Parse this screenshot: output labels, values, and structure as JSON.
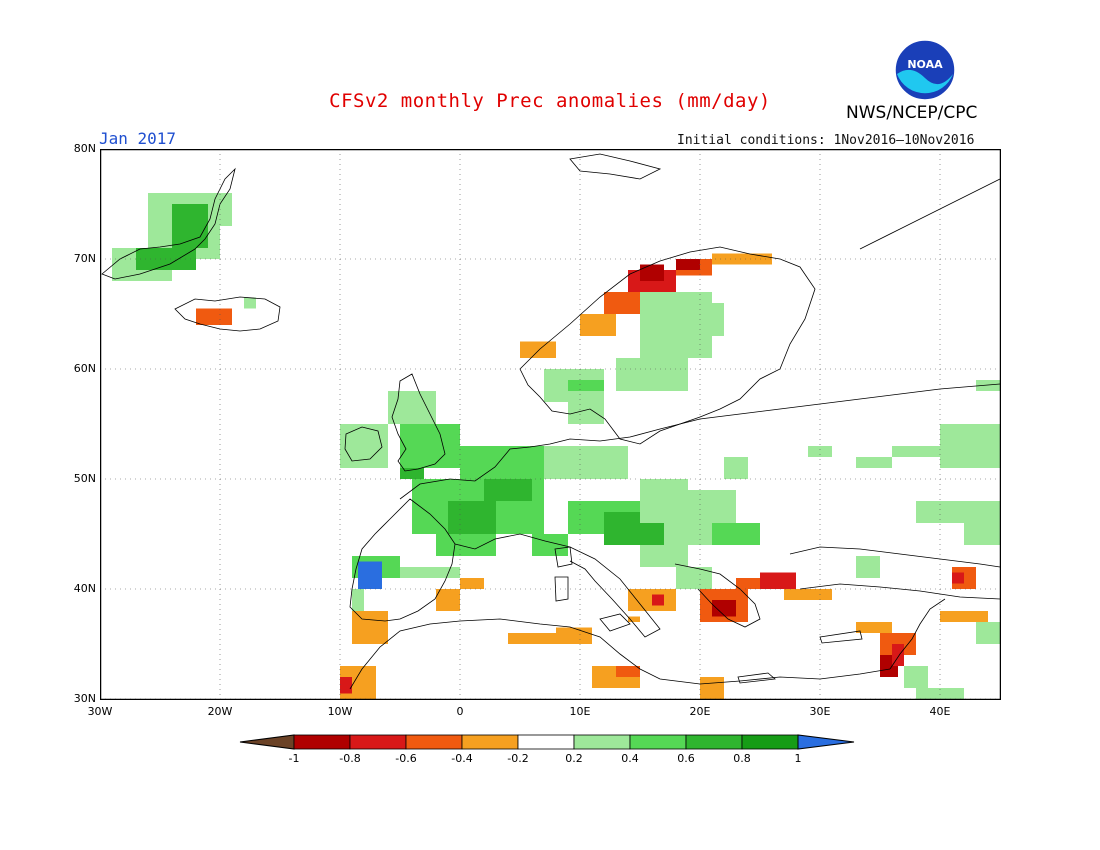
{
  "header": {
    "title": "CFSv2 monthly Prec anomalies (mm/day)",
    "agency": "NWS/NCEP/CPC",
    "logo_text": "NOAA",
    "month": "Jan 2017",
    "initial_conditions": "Initial conditions: 1Nov2016–10Nov2016"
  },
  "map": {
    "lon_range": [
      -30,
      45
    ],
    "lat_range": [
      30,
      80
    ],
    "lat_labels": [
      "80N",
      "70N",
      "60N",
      "50N",
      "40N",
      "30N"
    ],
    "lon_labels": [
      "30W",
      "20W",
      "10W",
      "0",
      "10E",
      "20E",
      "30E",
      "40E"
    ]
  },
  "colorbar": {
    "labels": [
      "-1",
      "-0.8",
      "-0.6",
      "-0.4",
      "-0.2",
      "0.2",
      "0.4",
      "0.6",
      "0.8",
      "1"
    ],
    "colors": {
      "below_-1": "#6b4226",
      "-1_-0.8": "#b00000",
      "-0.8_-0.6": "#d81818",
      "-0.6_-0.4": "#f05a10",
      "-0.4_-0.2": "#f6a020",
      "-0.2_0.2": "#ffffff",
      "0.2_0.4": "#9ee89a",
      "0.4_0.6": "#55d855",
      "0.6_0.8": "#2fb52f",
      "0.8_1": "#169c16",
      "above_1": "#2a6ee0"
    }
  }
}
